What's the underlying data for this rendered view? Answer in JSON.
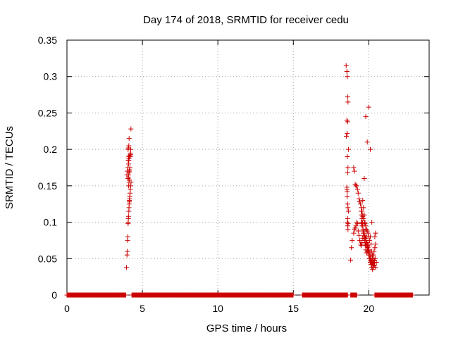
{
  "chart_data": {
    "type": "scatter",
    "title": "Day 174 of 2018, SRMTID for receiver cedu",
    "xlabel": "GPS time / hours",
    "ylabel": "SRMTID / TECUs",
    "xlim": [
      0,
      24
    ],
    "ylim": [
      0,
      0.35
    ],
    "x_ticks": [
      0,
      5,
      10,
      15,
      20
    ],
    "y_ticks": [
      0,
      0.05,
      0.1,
      0.15,
      0.2,
      0.25,
      0.3,
      0.35
    ],
    "x_tick_labels": [
      "0",
      "5",
      "10",
      "15",
      "20"
    ],
    "y_tick_labels": [
      "0",
      "0.05",
      "0.1",
      "0.15",
      "0.2",
      "0.25",
      "0.3",
      "0.35"
    ],
    "grid": true,
    "marker": "plus",
    "series_color": "#cc0000",
    "zero_baseline_segments": [
      [
        0.0,
        3.9
      ],
      [
        4.3,
        15.0
      ],
      [
        15.6,
        18.6
      ],
      [
        18.8,
        19.2
      ],
      [
        20.4,
        22.9
      ]
    ],
    "zero_baseline_step_hours": 0.0333,
    "series": [
      {
        "name": "cedu",
        "x": [
          3.95,
          3.98,
          4.0,
          4.02,
          4.03,
          4.05,
          4.06,
          4.07,
          4.08,
          4.1,
          4.11,
          4.12,
          4.13,
          4.14,
          4.15,
          4.16,
          4.18,
          4.2,
          4.22,
          4.25,
          3.97,
          4.0,
          4.04,
          4.08,
          4.1,
          4.12,
          4.14,
          4.17,
          4.2,
          4.23,
          4.05,
          4.07,
          4.09,
          4.11,
          4.13,
          4.15,
          4.17,
          4.19,
          4.21,
          4.24,
          4.05,
          4.07,
          4.1,
          4.12,
          4.09,
          4.11,
          4.13,
          4.06,
          4.08,
          4.1,
          18.5,
          18.55,
          18.58,
          18.6,
          18.62,
          18.55,
          18.6,
          18.57,
          18.52,
          18.65,
          18.58,
          18.62,
          18.6,
          18.55,
          18.57,
          18.6,
          18.62,
          18.65,
          18.58,
          18.6,
          18.62,
          18.55,
          18.57,
          18.6,
          18.63,
          18.8,
          18.85,
          18.9,
          19.0,
          19.05,
          19.1,
          19.15,
          19.2,
          19.25,
          19.3,
          19.35,
          19.4,
          19.45,
          19.5,
          19.55,
          19.6,
          19.65,
          19.7,
          19.75,
          19.8,
          19.85,
          19.9,
          19.95,
          20.0,
          20.05,
          20.1,
          20.15,
          20.2,
          20.25,
          20.3,
          20.35,
          20.4,
          20.45,
          20.5,
          19.5,
          19.55,
          19.6,
          19.65,
          19.7,
          19.75,
          19.8,
          19.85,
          19.9,
          19.95,
          20.0,
          20.05,
          20.1,
          20.15,
          20.2,
          20.25,
          20.3,
          20.35,
          20.4,
          20.45,
          19.52,
          19.58,
          19.62,
          19.68,
          19.72,
          19.78,
          19.82,
          19.88,
          19.92,
          19.98,
          20.02,
          20.08,
          20.12,
          20.18,
          20.22,
          20.28,
          20.32,
          20.38,
          20.42,
          19.6,
          19.65,
          19.7,
          19.75,
          19.8,
          19.85,
          19.9,
          19.95,
          20.0,
          20.05,
          20.1,
          20.15,
          20.2,
          20.25,
          20.3,
          19.55,
          19.62,
          19.7,
          19.78,
          19.85,
          19.92,
          20.0,
          20.08,
          20.15,
          20.22,
          20.3,
          20.38,
          20.45,
          19.0,
          19.05,
          19.1,
          19.15,
          19.2,
          19.25,
          19.3,
          19.35,
          19.4,
          19.45,
          19.5,
          19.55,
          19.6,
          19.65,
          19.7,
          19.75,
          19.8,
          19.85,
          19.9,
          19.95,
          20.0,
          19.5,
          19.55,
          19.6,
          19.7,
          19.8,
          19.9,
          20.0,
          20.1,
          20.2
        ],
        "y": [
          0.038,
          0.055,
          0.06,
          0.075,
          0.08,
          0.098,
          0.1,
          0.105,
          0.108,
          0.115,
          0.12,
          0.125,
          0.128,
          0.13,
          0.132,
          0.135,
          0.14,
          0.145,
          0.15,
          0.155,
          0.165,
          0.17,
          0.175,
          0.18,
          0.185,
          0.188,
          0.19,
          0.192,
          0.195,
          0.2,
          0.16,
          0.162,
          0.165,
          0.168,
          0.17,
          0.172,
          0.175,
          0.19,
          0.193,
          0.228,
          0.2,
          0.202,
          0.205,
          0.215,
          0.15,
          0.155,
          0.158,
          0.185,
          0.188,
          0.19,
          0.315,
          0.307,
          0.3,
          0.272,
          0.265,
          0.24,
          0.238,
          0.222,
          0.218,
          0.2,
          0.19,
          0.175,
          0.168,
          0.148,
          0.142,
          0.125,
          0.12,
          0.115,
          0.1,
          0.095,
          0.09,
          0.145,
          0.135,
          0.105,
          0.098,
          0.048,
          0.065,
          0.075,
          0.085,
          0.09,
          0.092,
          0.095,
          0.1,
          0.098,
          0.088,
          0.082,
          0.075,
          0.07,
          0.068,
          0.072,
          0.078,
          0.085,
          0.088,
          0.08,
          0.075,
          0.07,
          0.065,
          0.06,
          0.055,
          0.05,
          0.048,
          0.045,
          0.047,
          0.05,
          0.055,
          0.06,
          0.065,
          0.07,
          0.045,
          0.115,
          0.105,
          0.095,
          0.085,
          0.078,
          0.07,
          0.062,
          0.058,
          0.06,
          0.065,
          0.07,
          0.075,
          0.08,
          0.07,
          0.06,
          0.055,
          0.05,
          0.045,
          0.08,
          0.085,
          0.11,
          0.1,
          0.09,
          0.08,
          0.075,
          0.07,
          0.068,
          0.072,
          0.066,
          0.062,
          0.058,
          0.055,
          0.05,
          0.046,
          0.043,
          0.04,
          0.038,
          0.048,
          0.05,
          0.13,
          0.12,
          0.11,
          0.1,
          0.09,
          0.08,
          0.07,
          0.06,
          0.055,
          0.05,
          0.045,
          0.042,
          0.038,
          0.035,
          0.04,
          0.095,
          0.088,
          0.082,
          0.078,
          0.072,
          0.068,
          0.062,
          0.058,
          0.053,
          0.048,
          0.044,
          0.041,
          0.038,
          0.175,
          0.17,
          0.152,
          0.15,
          0.15,
          0.145,
          0.14,
          0.132,
          0.128,
          0.125,
          0.12,
          0.115,
          0.11,
          0.105,
          0.1,
          0.098,
          0.095,
          0.09,
          0.088,
          0.085,
          0.08,
          0.1,
          0.098,
          0.108,
          0.16,
          0.245,
          0.21,
          0.258,
          0.2,
          0.1
        ]
      }
    ]
  }
}
